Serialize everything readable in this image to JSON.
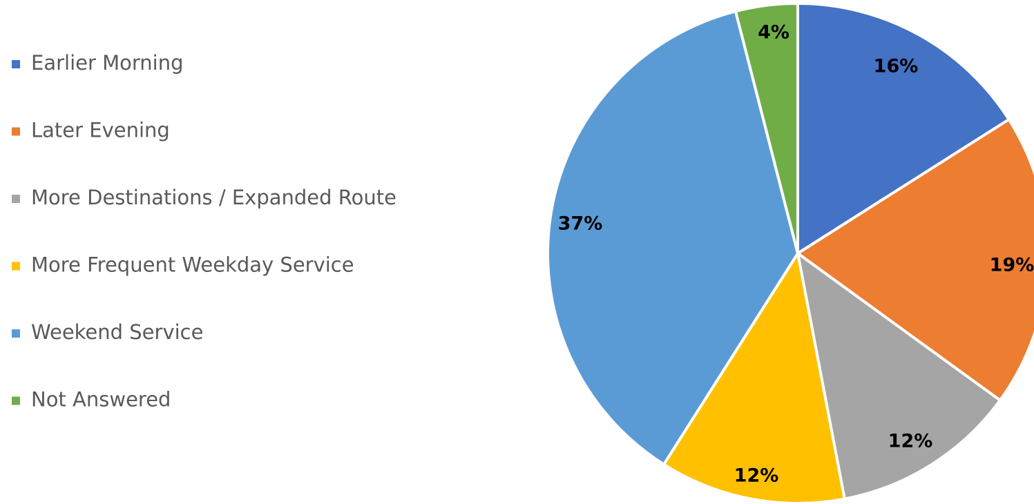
{
  "chart_data": {
    "type": "pie",
    "categories": [
      "Earlier Morning",
      "Later Evening",
      "More Destinations / Expanded Route",
      "More Frequent Weekday Service",
      "Weekend Service",
      "Not Answered"
    ],
    "values": [
      16,
      19,
      12,
      12,
      37,
      4
    ],
    "value_labels": [
      "16%",
      "19%",
      "12%",
      "12%",
      "37%",
      "4%"
    ],
    "colors": [
      "#4472c4",
      "#ed7d31",
      "#a5a5a5",
      "#ffc000",
      "#5b9bd5",
      "#70ad47"
    ],
    "legend": "left"
  }
}
